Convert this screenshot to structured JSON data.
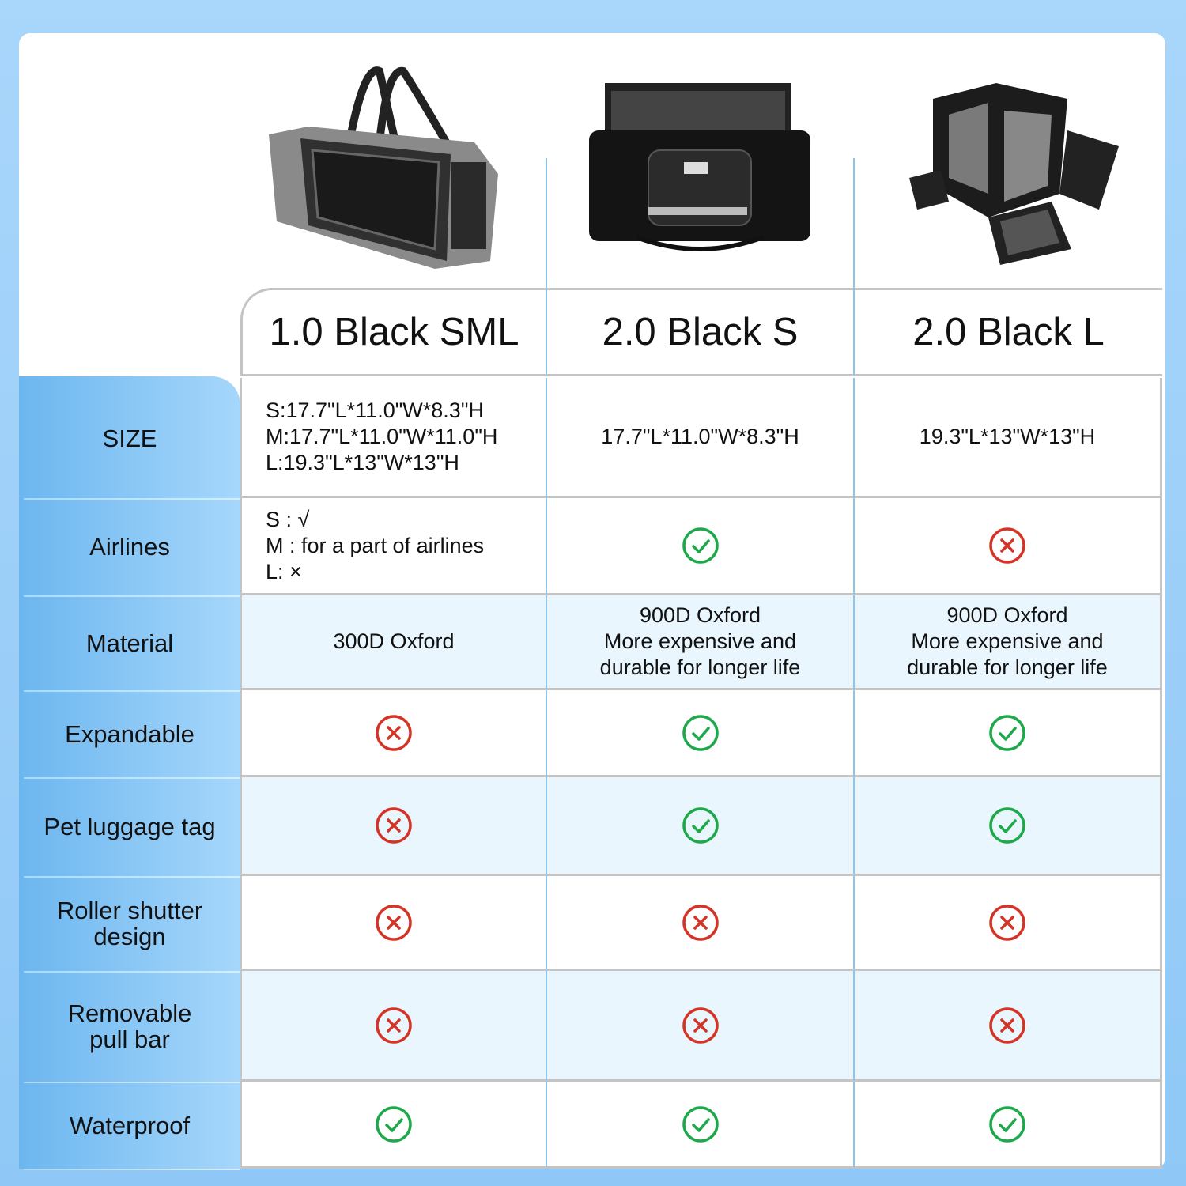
{
  "colors": {
    "check": "#1da84a",
    "cross": "#d43325",
    "label_bg_start": "#6cb6ef",
    "label_bg_end": "#a6d7fb",
    "alt_row": "#eaf6fe"
  },
  "products": [
    {
      "name": "1.0 Black SML",
      "image": "grey-pet-carrier-bag"
    },
    {
      "name": "2.0 Black S",
      "image": "black-pet-carrier-bag"
    },
    {
      "name": "2.0 Black L",
      "image": "black-expandable-pet-carrier-bag"
    }
  ],
  "rows": [
    {
      "label": "SIZE",
      "cells": [
        {
          "type": "text",
          "text": "S:17.7\"L*11.0\"W*8.3\"H\nM:17.7\"L*11.0\"W*11.0\"H\nL:19.3\"L*13\"W*13\"H",
          "align": "left"
        },
        {
          "type": "text",
          "text": "17.7\"L*11.0\"W*8.3\"H"
        },
        {
          "type": "text",
          "text": "19.3\"L*13\"W*13\"H"
        }
      ]
    },
    {
      "label": "Airlines",
      "cells": [
        {
          "type": "text",
          "text": "S : √\nM : for a part of airlines\nL: ×",
          "align": "left"
        },
        {
          "type": "check"
        },
        {
          "type": "cross"
        }
      ]
    },
    {
      "label": "Material",
      "alt": true,
      "cells": [
        {
          "type": "text",
          "text": "300D Oxford"
        },
        {
          "type": "text",
          "text": "900D Oxford\nMore expensive and\ndurable for longer life"
        },
        {
          "type": "text",
          "text": "900D Oxford\nMore expensive and\ndurable for longer life"
        }
      ]
    },
    {
      "label": "Expandable",
      "cells": [
        {
          "type": "cross"
        },
        {
          "type": "check"
        },
        {
          "type": "check"
        }
      ]
    },
    {
      "label": "Pet luggage tag",
      "alt": true,
      "cells": [
        {
          "type": "cross"
        },
        {
          "type": "check"
        },
        {
          "type": "check"
        }
      ]
    },
    {
      "label": "Roller shutter\ndesign",
      "cells": [
        {
          "type": "cross"
        },
        {
          "type": "cross"
        },
        {
          "type": "cross"
        }
      ]
    },
    {
      "label": "Removable\npull bar",
      "alt": true,
      "cells": [
        {
          "type": "cross"
        },
        {
          "type": "cross"
        },
        {
          "type": "cross"
        }
      ]
    },
    {
      "label": "Waterproof",
      "cells": [
        {
          "type": "check"
        },
        {
          "type": "check"
        },
        {
          "type": "check"
        }
      ]
    }
  ]
}
